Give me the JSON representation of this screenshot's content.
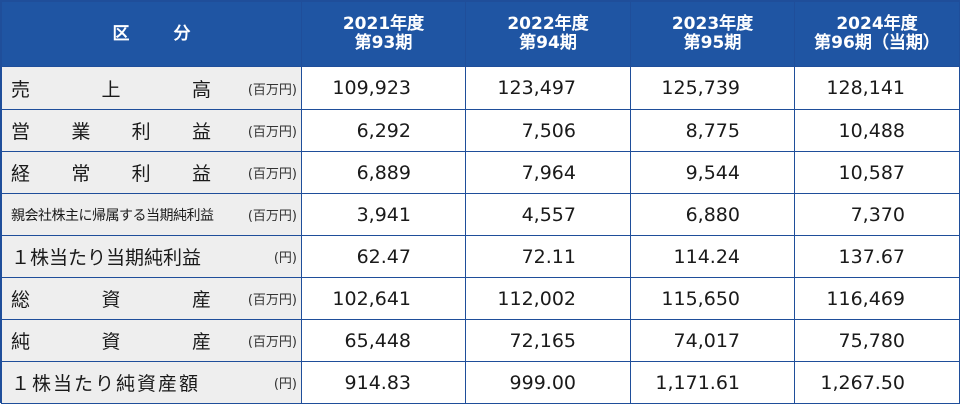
{
  "header": {
    "label": "区分",
    "years": [
      {
        "year": "2021年度",
        "period": "第93期"
      },
      {
        "year": "2022年度",
        "period": "第94期"
      },
      {
        "year": "2023年度",
        "period": "第95期"
      },
      {
        "year": "2024年度",
        "period": "第96期（当期）"
      }
    ]
  },
  "rows": [
    {
      "label_chars": [
        "売",
        "上",
        "高"
      ],
      "unit": "(百万円)",
      "values": [
        "109,923",
        "123,497",
        "125,739",
        "128,141"
      ]
    },
    {
      "label_chars": [
        "営",
        "業",
        "利",
        "益"
      ],
      "unit": "(百万円)",
      "values": [
        "6,292",
        "7,506",
        "8,775",
        "10,488"
      ]
    },
    {
      "label_chars": [
        "経",
        "常",
        "利",
        "益"
      ],
      "unit": "(百万円)",
      "values": [
        "6,889",
        "7,964",
        "9,544",
        "10,587"
      ]
    },
    {
      "label": "親会社株主に帰属する当期純利益",
      "unit": "(百万円)",
      "values": [
        "3,941",
        "4,557",
        "6,880",
        "7,370"
      ]
    },
    {
      "label": "１株当たり当期純利益",
      "unit": "(円)",
      "values": [
        "62.47",
        "72.11",
        "114.24",
        "137.67"
      ]
    },
    {
      "label_chars": [
        "総",
        "資",
        "産"
      ],
      "unit": "(百万円)",
      "values": [
        "102,641",
        "112,002",
        "115,650",
        "116,469"
      ]
    },
    {
      "label_chars": [
        "純",
        "資",
        "産"
      ],
      "unit": "(百万円)",
      "values": [
        "65,448",
        "72,165",
        "74,017",
        "75,780"
      ]
    },
    {
      "label": "１株当たり純資産額",
      "unit": "(円)",
      "values": [
        "914.83",
        "999.00",
        "1,171.61",
        "1,267.50"
      ]
    }
  ],
  "colors": {
    "header_bg": "#1f55a3",
    "border": "#1f4e9a",
    "label_bg": "#eeeeee"
  }
}
